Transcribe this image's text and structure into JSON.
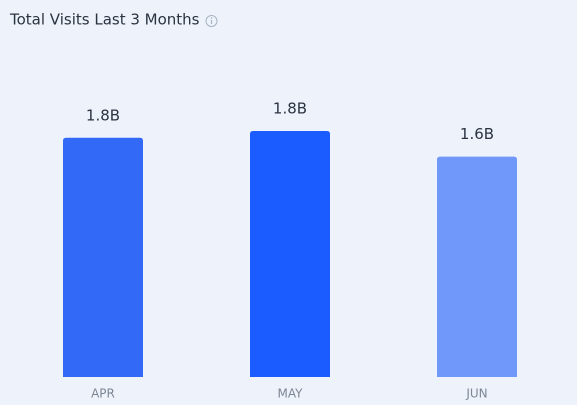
{
  "chart_data": {
    "type": "bar",
    "title": "Total Visits Last 3 Months",
    "categories": [
      "APR",
      "MAY",
      "JUN"
    ],
    "values": [
      1.78,
      1.83,
      1.64
    ],
    "value_labels": [
      "1.8B",
      "1.8B",
      "1.6B"
    ],
    "colors": [
      "#3269f6",
      "#1a5cff",
      "#7097fa"
    ]
  }
}
